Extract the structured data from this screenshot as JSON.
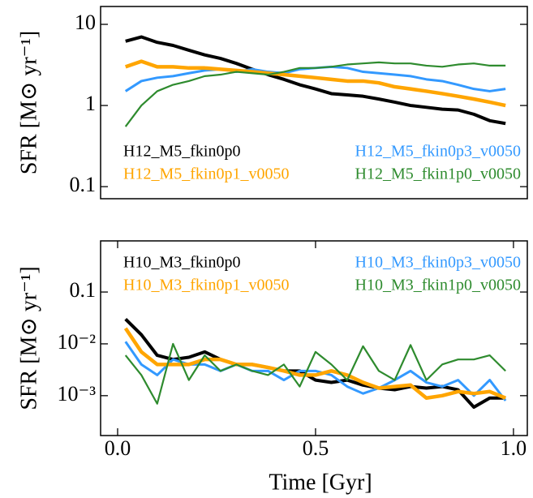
{
  "chart_data": [
    {
      "type": "line",
      "yscale": "log",
      "ylabel": "SFR [M⊙ yr⁻¹]",
      "xlim": [
        -0.043,
        1.035
      ],
      "ylim": [
        0.071,
        16.6
      ],
      "yticks": [
        0.1,
        1,
        10
      ],
      "legend_loc": "lower",
      "x": [
        0.02,
        0.06,
        0.1,
        0.14,
        0.18,
        0.22,
        0.26,
        0.3,
        0.34,
        0.38,
        0.42,
        0.46,
        0.5,
        0.54,
        0.58,
        0.62,
        0.66,
        0.7,
        0.74,
        0.78,
        0.82,
        0.86,
        0.9,
        0.94,
        0.98
      ],
      "series": [
        {
          "name": "H12_M5_fkin0p0",
          "color": "#000000",
          "linewidth": 4,
          "values": [
            6.2,
            7.0,
            6.0,
            5.5,
            4.8,
            4.2,
            3.8,
            3.3,
            2.8,
            2.4,
            2.1,
            1.8,
            1.6,
            1.4,
            1.35,
            1.3,
            1.2,
            1.1,
            1.0,
            0.95,
            0.9,
            0.88,
            0.78,
            0.65,
            0.6
          ]
        },
        {
          "name": "H12_M5_fkin0p3_v0050",
          "color": "#3399ff",
          "linewidth": 3,
          "values": [
            1.5,
            2.0,
            2.2,
            2.3,
            2.5,
            2.7,
            2.8,
            2.6,
            2.8,
            2.6,
            2.5,
            2.8,
            2.9,
            3.0,
            2.9,
            2.6,
            2.5,
            2.4,
            2.3,
            2.1,
            2.0,
            1.8,
            1.6,
            1.5,
            1.6
          ]
        },
        {
          "name": "H12_M5_fkin0p1_v0050",
          "color": "#ffa500",
          "linewidth": 4.5,
          "values": [
            3.0,
            3.5,
            3.0,
            3.0,
            2.9,
            2.9,
            2.8,
            2.7,
            2.6,
            2.5,
            2.4,
            2.3,
            2.2,
            2.1,
            2.0,
            2.0,
            1.9,
            1.7,
            1.6,
            1.5,
            1.4,
            1.3,
            1.2,
            1.1,
            1.0
          ]
        },
        {
          "name": "H12_M5_fkin1p0_v0050",
          "color": "#2e8b2e",
          "linewidth": 2.2,
          "values": [
            0.55,
            1.0,
            1.5,
            1.8,
            2.0,
            2.3,
            2.4,
            2.6,
            2.5,
            2.4,
            2.6,
            2.9,
            2.9,
            3.0,
            3.2,
            3.3,
            3.4,
            3.3,
            3.3,
            3.1,
            3.0,
            3.2,
            3.3,
            3.1,
            3.1
          ]
        }
      ]
    },
    {
      "type": "line",
      "yscale": "log",
      "ylabel": "SFR [M⊙ yr⁻¹]",
      "xlabel": "Time [Gyr]",
      "xlim": [
        -0.043,
        1.035
      ],
      "ylim": [
        0.00017,
        0.97
      ],
      "yticks": [
        {
          "value": 0.001,
          "label": "10⁻³"
        },
        {
          "value": 0.01,
          "label": "10⁻²"
        },
        0.1
      ],
      "xticks": [
        {
          "value": 0,
          "label": "0.0"
        },
        0.5,
        {
          "value": 1,
          "label": "1.0"
        }
      ],
      "legend_loc": "upper",
      "x": [
        0.02,
        0.06,
        0.1,
        0.14,
        0.18,
        0.22,
        0.26,
        0.3,
        0.34,
        0.38,
        0.42,
        0.46,
        0.5,
        0.54,
        0.58,
        0.62,
        0.66,
        0.7,
        0.74,
        0.78,
        0.82,
        0.86,
        0.9,
        0.94,
        0.98
      ],
      "series": [
        {
          "name": "H10_M3_fkin0p0",
          "color": "#000000",
          "linewidth": 4,
          "values": [
            0.03,
            0.015,
            0.006,
            0.005,
            0.0055,
            0.007,
            0.005,
            0.004,
            0.004,
            0.0035,
            0.003,
            0.003,
            0.002,
            0.0018,
            0.002,
            0.0016,
            0.0014,
            0.0013,
            0.0015,
            0.0014,
            0.0015,
            0.0013,
            0.0006,
            0.0009,
            0.0009
          ]
        },
        {
          "name": "H10_M3_fkin0p3_v0050",
          "color": "#3399ff",
          "linewidth": 3,
          "values": [
            0.011,
            0.004,
            0.0025,
            0.005,
            0.004,
            0.004,
            0.003,
            0.004,
            0.003,
            0.003,
            0.002,
            0.003,
            0.003,
            0.0025,
            0.0015,
            0.0011,
            0.0014,
            0.002,
            0.003,
            0.0018,
            0.0015,
            0.002,
            0.001,
            0.002,
            0.0008
          ]
        },
        {
          "name": "H10_M3_fkin0p1_v0050",
          "color": "#ffa500",
          "linewidth": 4.5,
          "values": [
            0.02,
            0.007,
            0.004,
            0.004,
            0.004,
            0.005,
            0.005,
            0.004,
            0.004,
            0.0035,
            0.003,
            0.0025,
            0.0025,
            0.003,
            0.0025,
            0.0018,
            0.0014,
            0.0015,
            0.0016,
            0.0009,
            0.001,
            0.0012,
            0.0011,
            0.0012,
            0.0009
          ]
        },
        {
          "name": "H10_M3_fkin1p0_v0050",
          "color": "#2e8b2e",
          "linewidth": 2.2,
          "values": [
            0.006,
            0.0025,
            0.0007,
            0.01,
            0.002,
            0.006,
            0.003,
            0.004,
            0.003,
            0.0025,
            0.004,
            0.0015,
            0.007,
            0.004,
            0.002,
            0.009,
            0.003,
            0.002,
            0.0095,
            0.002,
            0.004,
            0.005,
            0.005,
            0.006,
            0.003
          ]
        }
      ]
    }
  ]
}
